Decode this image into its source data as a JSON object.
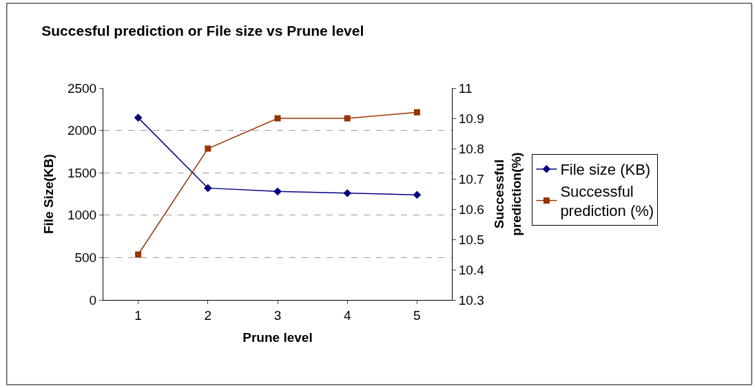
{
  "chart_data": {
    "type": "line",
    "title": "Succesful prediction or File size vs Prune level",
    "xlabel": "Prune level",
    "ylabel": "File Size(KB)",
    "y2label": "Successful prediction(%)",
    "categories": [
      "1",
      "2",
      "3",
      "4",
      "5"
    ],
    "series": [
      {
        "name": "File size (KB)",
        "color": "#000080",
        "values": [
          2150,
          1320,
          1280,
          1260,
          1240
        ],
        "marker": "diamond"
      },
      {
        "name": "Successful prediction (%)",
        "color": "#993300",
        "values": [
          10.45,
          10.8,
          10.9,
          10.9,
          10.92
        ],
        "marker": "square",
        "axis": "y2"
      }
    ],
    "ylim": [
      0,
      2500
    ],
    "yticks": [
      0,
      500,
      1000,
      1500,
      2000,
      2500
    ],
    "y2lim": [
      10.3,
      11
    ],
    "y2ticks": [
      10.3,
      10.4,
      10.5,
      10.6,
      10.7,
      10.8,
      10.9,
      {
        "value": 11,
        "label": "11"
      }
    ],
    "grid": "y",
    "legend": "right",
    "line_style": "solid"
  }
}
